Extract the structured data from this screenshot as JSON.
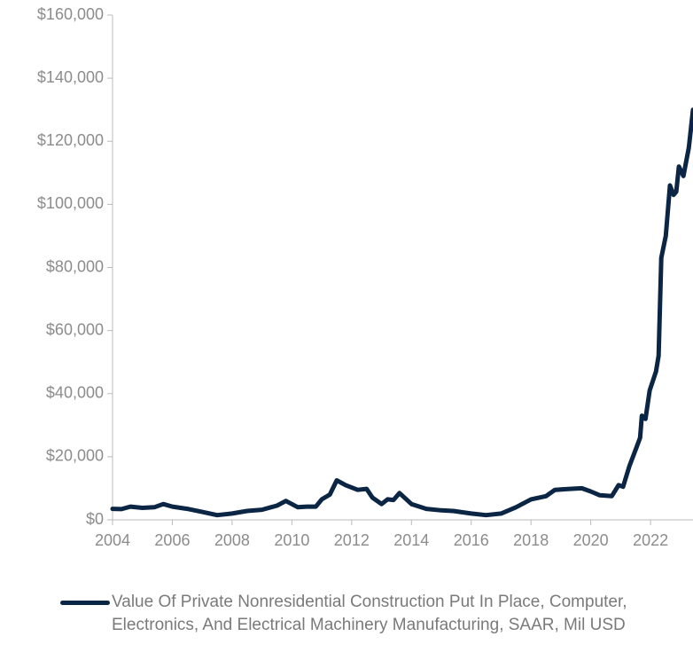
{
  "chart_data": {
    "type": "line",
    "x": [
      2004.0,
      2004.3,
      2004.6,
      2005.0,
      2005.4,
      2005.7,
      2006.0,
      2006.5,
      2007.0,
      2007.5,
      2008.0,
      2008.5,
      2009.0,
      2009.3,
      2009.5,
      2009.8,
      2010.2,
      2010.5,
      2010.8,
      2011.0,
      2011.27,
      2011.5,
      2011.8,
      2012.2,
      2012.5,
      2012.7,
      2013.0,
      2013.2,
      2013.4,
      2013.6,
      2014.0,
      2014.5,
      2015.0,
      2015.4,
      2016.0,
      2016.5,
      2017.0,
      2017.5,
      2018.0,
      2018.5,
      2018.8,
      2019.3,
      2019.7,
      2020.0,
      2020.3,
      2020.7,
      2020.93,
      2021.08,
      2021.29,
      2021.53,
      2021.65,
      2021.71,
      2021.83,
      2021.97,
      2022.18,
      2022.27,
      2022.36,
      2022.51,
      2022.65,
      2022.77,
      2022.86,
      2022.95,
      2023.1,
      2023.28,
      2023.42
    ],
    "series": [
      {
        "name": "Value Of Private Nonresidential Construction Put In Place, Computer, Electronics, And Electrical Machinery Manufacturing, SAAR, Mil USD",
        "color": "#0b2545",
        "values": [
          3500,
          3400,
          4200,
          3800,
          4000,
          5000,
          4200,
          3500,
          2500,
          1500,
          2000,
          2800,
          3200,
          4000,
          4500,
          6000,
          4000,
          4200,
          4200,
          6500,
          8000,
          12500,
          11000,
          9500,
          9800,
          7000,
          5000,
          6500,
          6300,
          8500,
          5000,
          3500,
          3000,
          2800,
          2000,
          1500,
          2000,
          4000,
          6500,
          7500,
          9500,
          9800,
          10000,
          9000,
          7800,
          7500,
          11000,
          10500,
          17000,
          23000,
          26000,
          33000,
          32000,
          41000,
          47000,
          52000,
          83000,
          90000,
          106000,
          103000,
          104000,
          112000,
          109000,
          118000,
          130000
        ]
      }
    ],
    "xlim": [
      2004,
      2023.42
    ],
    "xticks": [
      2004,
      2006,
      2008,
      2010,
      2012,
      2014,
      2016,
      2018,
      2020,
      2022
    ],
    "ylim": [
      0,
      160000
    ],
    "yticks": [
      {
        "value": 0,
        "label": "$0"
      },
      {
        "value": 20000,
        "label": "$20,000"
      },
      {
        "value": 40000,
        "label": "$40,000"
      },
      {
        "value": 60000,
        "label": "$60,000"
      },
      {
        "value": 80000,
        "label": "$80,000"
      },
      {
        "value": 100000,
        "label": "$100,000"
      },
      {
        "value": 120000,
        "label": "$120,000"
      },
      {
        "value": 140000,
        "label": "$140,000"
      },
      {
        "value": 160000,
        "label": "$160,000"
      }
    ],
    "grid": false
  }
}
